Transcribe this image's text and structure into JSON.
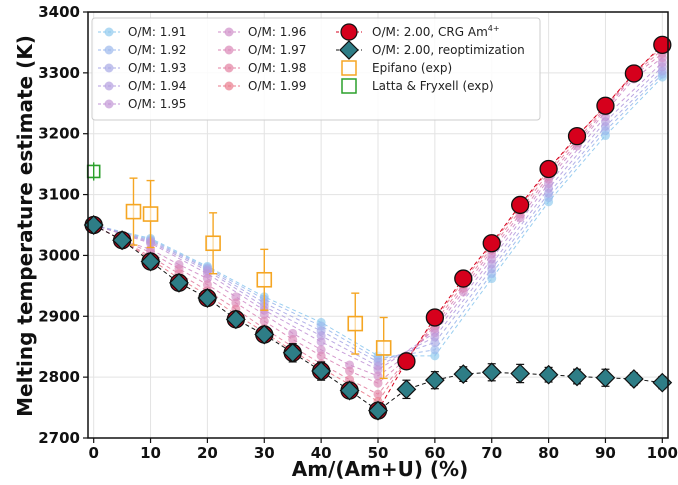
{
  "chart_data": {
    "type": "scatter",
    "xlabel": "Am/(Am+U) (%)",
    "ylabel": "Melting temperature estimate (K)",
    "xlim": [
      -1,
      101
    ],
    "ylim": [
      2700,
      3400
    ],
    "x_ticks": [
      0,
      10,
      20,
      30,
      40,
      50,
      60,
      70,
      80,
      90,
      100
    ],
    "y_ticks": [
      2700,
      2800,
      2900,
      3000,
      3100,
      3200,
      3300,
      3400
    ],
    "grid": true,
    "legend_position": "top-left",
    "colors": {
      "om_series": [
        "#8ec9ee",
        "#9bb8ec",
        "#a8a9e6",
        "#b49edf",
        "#c295d6",
        "#cf8dc8",
        "#da86b6",
        "#e380a1",
        "#ea7a8b"
      ],
      "crg_fill": "#d6001c",
      "reopt_fill": "#2e7d86",
      "epifano": "#f5a623",
      "latta": "#2ca02c"
    },
    "series": [
      {
        "name": "O/M: 1.91",
        "x": [
          0,
          10,
          20,
          30,
          40,
          50,
          60,
          70,
          80,
          90,
          100
        ],
        "y": [
          3050,
          3028,
          2982,
          2932,
          2890,
          2835,
          2835,
          2962,
          3088,
          3197,
          3293
        ]
      },
      {
        "name": "O/M: 1.92",
        "x": [
          0,
          10,
          20,
          30,
          40,
          50,
          60,
          70,
          80,
          90,
          100
        ],
        "y": [
          3050,
          3026,
          2980,
          2928,
          2884,
          2830,
          2845,
          2970,
          3095,
          3205,
          3298
        ]
      },
      {
        "name": "O/M: 1.93",
        "x": [
          0,
          10,
          20,
          30,
          40,
          50,
          60,
          70,
          80,
          90,
          100
        ],
        "y": [
          3050,
          3024,
          2978,
          2922,
          2876,
          2825,
          2857,
          2978,
          3102,
          3212,
          3303
        ]
      },
      {
        "name": "O/M: 1.94",
        "x": [
          0,
          10,
          20,
          30,
          40,
          50,
          60,
          70,
          80,
          90,
          100
        ],
        "y": [
          3050,
          3022,
          2975,
          2916,
          2868,
          2818,
          2866,
          2986,
          3110,
          3220,
          3310
        ]
      },
      {
        "name": "O/M: 1.95",
        "x": [
          0,
          10,
          20,
          30,
          40,
          50,
          60,
          70,
          80,
          90,
          100
        ],
        "y": [
          3050,
          3020,
          2970,
          2910,
          2858,
          2812,
          2873,
          2994,
          3118,
          3228,
          3317
        ]
      },
      {
        "name": "O/M: 1.96",
        "x": [
          0,
          5,
          10,
          15,
          20,
          25,
          30,
          35,
          40,
          45,
          50,
          55,
          60,
          65,
          70,
          75,
          80,
          85,
          90,
          95,
          100
        ],
        "y": [
          3050,
          3025,
          3010,
          2985,
          2962,
          2932,
          2903,
          2872,
          2845,
          2820,
          2802,
          2835,
          2880,
          2940,
          3002,
          3062,
          3125,
          3180,
          3236,
          3290,
          3325
        ]
      },
      {
        "name": "O/M: 1.97",
        "x": [
          0,
          5,
          10,
          15,
          20,
          25,
          30,
          35,
          40,
          45,
          50,
          55,
          60,
          65,
          70,
          75,
          80,
          85,
          90,
          95,
          100
        ],
        "y": [
          3050,
          3025,
          3005,
          2978,
          2952,
          2922,
          2892,
          2862,
          2835,
          2810,
          2790,
          2830,
          2885,
          2946,
          3008,
          3068,
          3130,
          3185,
          3240,
          3295,
          3332
        ]
      },
      {
        "name": "O/M: 1.98",
        "x": [
          0,
          5,
          10,
          15,
          20,
          25,
          30,
          35,
          40,
          45,
          50,
          55,
          60,
          65,
          70,
          75,
          80,
          85,
          90,
          95,
          100
        ],
        "y": [
          3050,
          3025,
          2998,
          2970,
          2942,
          2912,
          2880,
          2850,
          2822,
          2796,
          2772,
          2828,
          2890,
          2952,
          3013,
          3074,
          3136,
          3190,
          3243,
          3298,
          3338
        ]
      },
      {
        "name": "O/M: 1.99",
        "x": [
          0,
          5,
          10,
          15,
          20,
          25,
          30,
          35,
          40,
          45,
          50,
          55,
          60,
          65,
          70,
          75,
          80,
          85,
          90,
          95,
          100
        ],
        "y": [
          3050,
          3025,
          2994,
          2962,
          2935,
          2903,
          2874,
          2843,
          2815,
          2788,
          2760,
          2827,
          2895,
          2958,
          3017,
          3080,
          3140,
          3195,
          3246,
          3300,
          3343
        ]
      },
      {
        "name": "O/M: 2.00, CRG Am$^{4+}$",
        "x": [
          0,
          5,
          10,
          15,
          20,
          25,
          30,
          35,
          40,
          45,
          50,
          55,
          60,
          65,
          70,
          75,
          80,
          85,
          90,
          95,
          100
        ],
        "y": [
          3050,
          3025,
          2990,
          2955,
          2930,
          2895,
          2870,
          2840,
          2810,
          2778,
          2745,
          2826,
          2898,
          2962,
          3020,
          3083,
          3142,
          3196,
          3246,
          3299,
          3346
        ]
      },
      {
        "name": "O/M: 2.00, reoptimization",
        "x": [
          0,
          5,
          10,
          15,
          20,
          25,
          30,
          35,
          40,
          45,
          50,
          55,
          60,
          65,
          70,
          75,
          80,
          85,
          90,
          95,
          100
        ],
        "y": [
          3050,
          3025,
          2990,
          2955,
          2930,
          2895,
          2870,
          2840,
          2810,
          2778,
          2745,
          2780,
          2795,
          2805,
          2808,
          2806,
          2804,
          2801,
          2799,
          2797,
          2791
        ],
        "yerr": [
          0,
          0,
          0,
          0,
          0,
          0,
          0,
          15,
          15,
          12,
          10,
          15,
          14,
          12,
          14,
          15,
          12,
          12,
          14,
          10,
          10
        ]
      },
      {
        "name": "Epifano (exp)",
        "x": [
          7,
          10,
          21,
          30,
          46,
          51
        ],
        "y": [
          3072,
          3068,
          3020,
          2960,
          2888,
          2848
        ],
        "yerr": [
          55,
          55,
          50,
          50,
          50,
          50
        ]
      },
      {
        "name": "Latta & Fryxell (exp)",
        "x": [
          0
        ],
        "y": [
          3138
        ],
        "yerr": [
          15
        ]
      }
    ]
  },
  "legend": {
    "col1": [
      "O/M: 1.91",
      "O/M: 1.92",
      "O/M: 1.93",
      "O/M: 1.94",
      "O/M: 1.95"
    ],
    "col2": [
      "O/M: 1.96",
      "O/M: 1.97",
      "O/M: 1.98",
      "O/M: 1.99"
    ],
    "col3": [
      "O/M: 2.00, CRG Am",
      "O/M: 2.00, reoptimization",
      "Epifano (exp)",
      "Latta & Fryxell (exp)"
    ],
    "crg_superscript": "4+"
  }
}
